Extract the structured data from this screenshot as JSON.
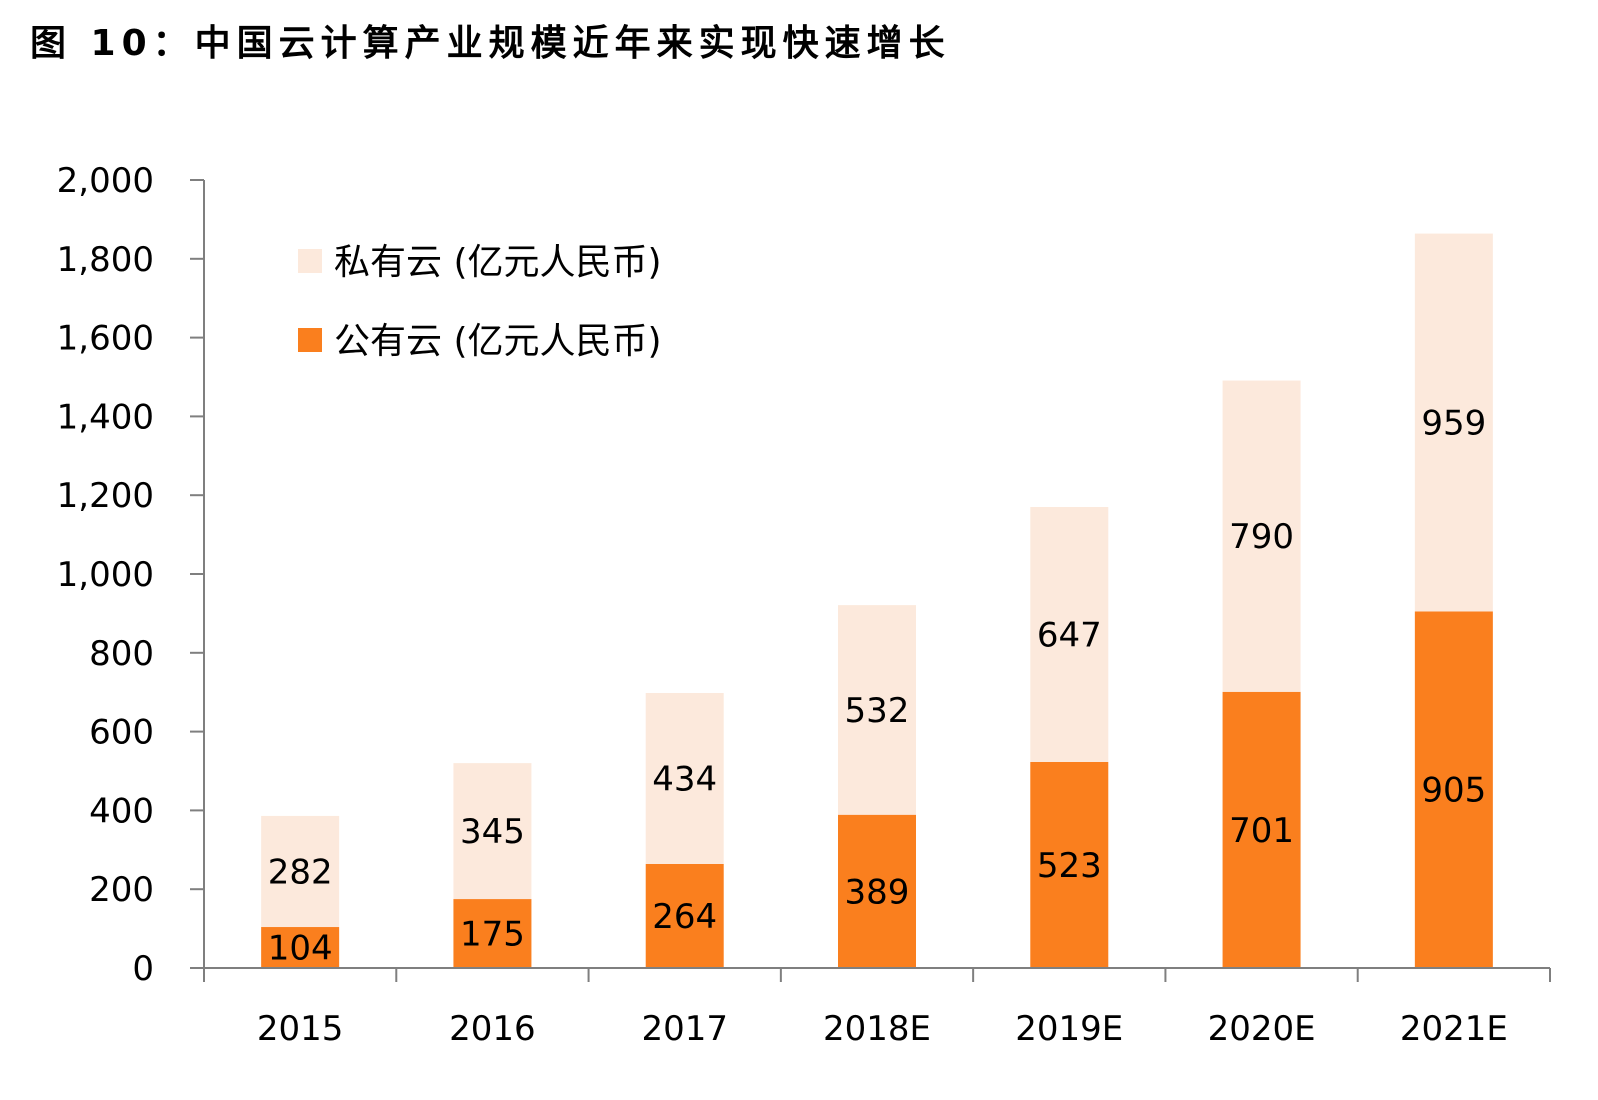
{
  "title": "图 10：中国云计算产业规模近年来实现快速增长",
  "colors": {
    "public": "#FA7F1E",
    "private": "#FCE9DC",
    "axis": "#7F7F7F"
  },
  "chart_data": {
    "type": "bar",
    "stacked": true,
    "categories": [
      "2015",
      "2016",
      "2017",
      "2018E",
      "2019E",
      "2020E",
      "2021E"
    ],
    "series": [
      {
        "name": "公有云 (亿元人民币)",
        "values": [
          104,
          175,
          264,
          389,
          523,
          701,
          905
        ]
      },
      {
        "name": "私有云 (亿元人民币)",
        "values": [
          282,
          345,
          434,
          532,
          647,
          790,
          959
        ]
      }
    ],
    "ylim": [
      0,
      2000
    ],
    "yticks": [
      0,
      200,
      400,
      600,
      800,
      1000,
      1200,
      1400,
      1600,
      1800,
      2000
    ],
    "ytick_labels": [
      "0",
      "200",
      "400",
      "600",
      "800",
      "1,000",
      "1,200",
      "1,400",
      "1,600",
      "1,800",
      "2,000"
    ],
    "xlabel": "",
    "ylabel": "",
    "grid": false,
    "legend_position": "top-left"
  }
}
